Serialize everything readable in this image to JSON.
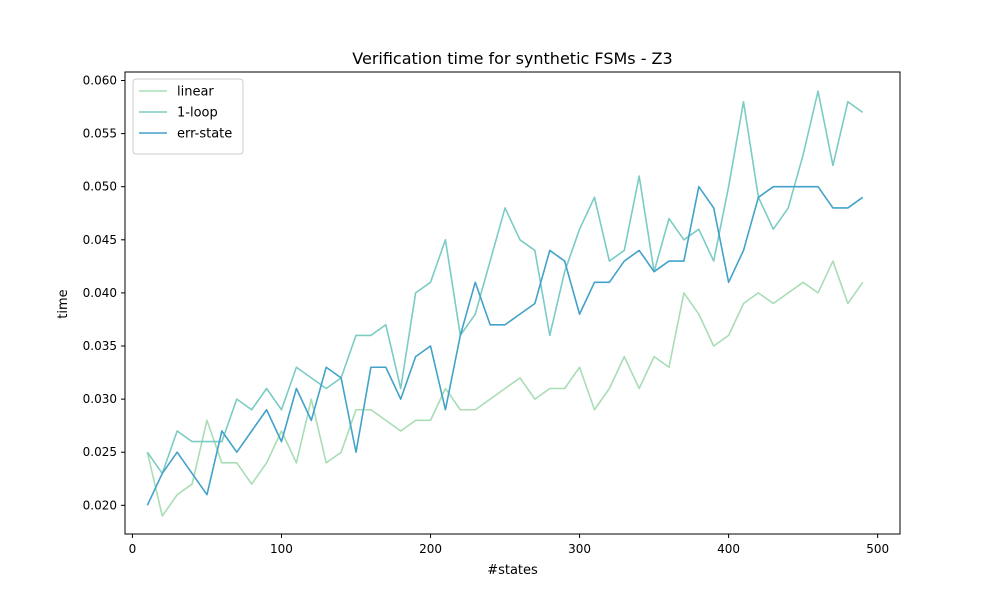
{
  "chart_data": {
    "type": "line",
    "title": "Verification time for synthetic FSMs - Z3",
    "xlabel": "#states",
    "ylabel": "time",
    "xlim": [
      -5,
      515
    ],
    "ylim": [
      0.0173,
      0.0608
    ],
    "xticks": [
      0,
      100,
      200,
      300,
      400,
      500
    ],
    "xtick_labels": [
      "0",
      "100",
      "200",
      "300",
      "400",
      "500"
    ],
    "yticks": [
      0.02,
      0.025,
      0.03,
      0.035,
      0.04,
      0.045,
      0.05,
      0.055,
      0.06
    ],
    "ytick_labels": [
      "0.020",
      "0.025",
      "0.030",
      "0.035",
      "0.040",
      "0.045",
      "0.050",
      "0.055",
      "0.060"
    ],
    "grid": false,
    "legend_position": "top-left",
    "x": [
      10,
      20,
      30,
      40,
      50,
      60,
      70,
      80,
      90,
      100,
      110,
      120,
      130,
      140,
      150,
      160,
      170,
      180,
      190,
      200,
      210,
      220,
      230,
      240,
      250,
      260,
      270,
      280,
      290,
      300,
      310,
      320,
      330,
      340,
      350,
      360,
      370,
      380,
      390,
      400,
      410,
      420,
      430,
      440,
      450,
      460,
      470,
      480,
      490
    ],
    "series": [
      {
        "name": "linear",
        "color": "#a8ddb5",
        "values": [
          0.025,
          0.019,
          0.021,
          0.022,
          0.028,
          0.024,
          0.024,
          0.022,
          0.024,
          0.027,
          0.024,
          0.03,
          0.024,
          0.025,
          0.029,
          0.029,
          0.028,
          0.027,
          0.028,
          0.028,
          0.031,
          0.029,
          0.029,
          0.03,
          0.031,
          0.032,
          0.03,
          0.031,
          0.031,
          0.033,
          0.029,
          0.031,
          0.034,
          0.031,
          0.034,
          0.033,
          0.04,
          0.038,
          0.035,
          0.036,
          0.039,
          0.04,
          0.039,
          0.04,
          0.041,
          0.04,
          0.043,
          0.039,
          0.041
        ]
      },
      {
        "name": "1-loop",
        "color": "#7bccc4",
        "values": [
          0.025,
          0.023,
          0.027,
          0.026,
          0.026,
          0.026,
          0.03,
          0.029,
          0.031,
          0.029,
          0.033,
          0.032,
          0.031,
          0.032,
          0.036,
          0.036,
          0.037,
          0.031,
          0.04,
          0.041,
          0.045,
          0.036,
          0.038,
          0.043,
          0.048,
          0.045,
          0.044,
          0.036,
          0.042,
          0.046,
          0.049,
          0.043,
          0.044,
          0.051,
          0.042,
          0.047,
          0.045,
          0.046,
          0.043,
          0.05,
          0.058,
          0.049,
          0.046,
          0.048,
          0.053,
          0.059,
          0.052,
          0.058,
          0.057
        ]
      },
      {
        "name": "err-state",
        "color": "#43a2ca",
        "values": [
          0.02,
          0.023,
          0.025,
          0.023,
          0.021,
          0.027,
          0.025,
          0.027,
          0.029,
          0.026,
          0.031,
          0.028,
          0.033,
          0.032,
          0.025,
          0.033,
          0.033,
          0.03,
          0.034,
          0.035,
          0.029,
          0.036,
          0.041,
          0.037,
          0.037,
          0.038,
          0.039,
          0.044,
          0.043,
          0.038,
          0.041,
          0.041,
          0.043,
          0.044,
          0.042,
          0.043,
          0.043,
          0.05,
          0.048,
          0.041,
          0.044,
          0.049,
          0.05,
          0.05,
          0.05,
          0.05,
          0.048,
          0.048,
          0.049
        ]
      }
    ]
  }
}
